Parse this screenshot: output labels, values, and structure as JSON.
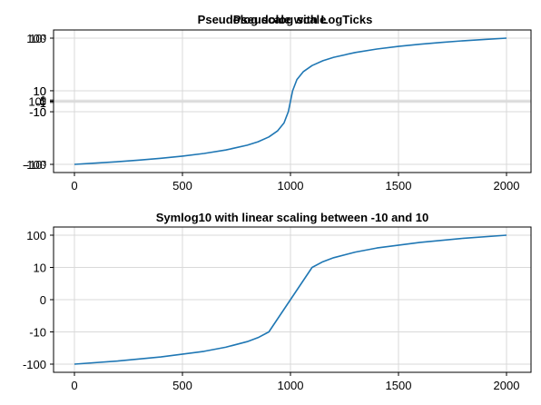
{
  "chart_data": [
    {
      "type": "line",
      "title_layers": [
        "Pseudolog scale with LogTicks",
        "Pseudolog scale"
      ],
      "xlim": [
        0,
        2000
      ],
      "x_ticks": [
        "0",
        "500",
        "1000",
        "1500",
        "2000"
      ],
      "y_tick_layers": [
        [
          "10³",
          "10",
          "1",
          "10⁰",
          "-1",
          "-10",
          "-10³"
        ],
        [
          "100",
          "10",
          "0",
          "-10",
          "-100"
        ]
      ],
      "series": [
        {
          "x": [
            0,
            100,
            200,
            300,
            400,
            500,
            600,
            700,
            800,
            850,
            900,
            940,
            970,
            990,
            1000,
            1010,
            1030,
            1060,
            1100,
            1150,
            1200,
            1300,
            1400,
            1500,
            1600,
            1700,
            1800,
            1900,
            2000
          ],
          "y": [
            -1000,
            -900,
            -800,
            -700,
            -600,
            -500,
            -400,
            -300,
            -200,
            -150,
            -100,
            -60,
            -30,
            -10,
            0,
            10,
            30,
            60,
            100,
            150,
            200,
            300,
            400,
            500,
            600,
            700,
            800,
            900,
            1000
          ]
        }
      ],
      "scale": "pseudolog"
    },
    {
      "type": "line",
      "title": "Symlog10 with linear scaling between -10 and 10",
      "xlim": [
        0,
        2000
      ],
      "x_ticks": [
        "0",
        "500",
        "1000",
        "1500",
        "2000"
      ],
      "y_ticks": [
        "100",
        "10",
        "0",
        "-10",
        "-100"
      ],
      "series": [
        {
          "x": [
            0,
            200,
            400,
            600,
            700,
            800,
            850,
            900,
            1000,
            1100,
            1150,
            1200,
            1300,
            1400,
            1600,
            1800,
            2000
          ],
          "y": [
            -100,
            -80,
            -60,
            -40,
            -30,
            -20,
            -15,
            -10,
            0,
            10,
            15,
            20,
            30,
            40,
            60,
            80,
            100
          ]
        }
      ],
      "scale": "symlog10"
    }
  ]
}
